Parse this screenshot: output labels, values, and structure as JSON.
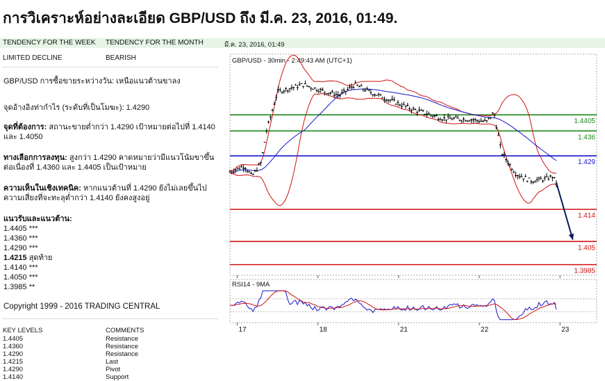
{
  "title": "การวิเคราะห์อย่างละเอียด GBP/USD ถึง มี.ค. 23, 2016, 01:49.",
  "header": {
    "tendency_week_label": "TENDENCY FOR THE WEEK",
    "tendency_month_label": "TENDENCY FOR THE MONTH",
    "date": "มี.ค. 23, 2016, 01:49",
    "tendency_week_value": "LIMITED DECLINE",
    "tendency_month_value": "BEARISH"
  },
  "analysis": {
    "pair_line": "GBP/USD การซื้อขายระหว่างวัน: เหนือแนวต้านขาลง",
    "pivot_line": "จุดอ้างอิงท่ากำไร (ระดับที่เป็นโมฆะ): 1.4290",
    "target_label": "จุดที่ต้องการ:",
    "target_text": " สถานะขายต่ำกว่า 1.4290 เป้าหมายต่อไปที่ 1.4140 และ 1.4050",
    "alt_label": "ทางเลือกการลงทุน:",
    "alt_text": " สูงกว่า 1.4290 คาดหมายว่ามีแนวโน้มขาขึ้นต่อเนื่องที่ 1.4360 และ 1.4405 เป็นเป้าหมาย",
    "tech_label": "ความเห็นในเชิงเทคนิค:",
    "tech_text": " หากแนวต้านที่ 1.4290 ยังไม่เลยขึ้นไป ความเสี่ยงที่จะทะลุต่ำกว่า 1.4140 ยังคงสูงอยู่",
    "sr_title": "แนวรับและแนวต้าน:",
    "levels": [
      {
        "value": "1.4405",
        "suffix": " ***",
        "bold": false
      },
      {
        "value": "1.4360",
        "suffix": " ***",
        "bold": false
      },
      {
        "value": "1.4290",
        "suffix": " ***",
        "bold": false
      },
      {
        "value": "1.4215",
        "suffix": " สุดท้าย",
        "bold": true
      },
      {
        "value": "1.4140",
        "suffix": " ***",
        "bold": false
      },
      {
        "value": "1.4050",
        "suffix": " ***",
        "bold": false
      },
      {
        "value": "1.3985",
        "suffix": " **",
        "bold": false
      }
    ],
    "copyright": "Copyright 1999 - 2016 TRADING CENTRAL"
  },
  "key_levels": {
    "header_levels": "KEY LEVELS",
    "header_comments": "COMMENTS",
    "rows": [
      {
        "level": "1.4405",
        "comment": "Resistance"
      },
      {
        "level": "1.4360",
        "comment": "Resistance"
      },
      {
        "level": "1.4290",
        "comment": "Resistance"
      },
      {
        "level": "1.4215",
        "comment": "Last"
      },
      {
        "level": "1.4290",
        "comment": "Pivot"
      },
      {
        "level": "1.4140",
        "comment": "Support"
      }
    ]
  },
  "chart_data": {
    "type": "candlestick",
    "title": "GBP/USD - 30min - 2:49:43 AM (UTC+1)",
    "x_ticks": [
      "17",
      "18",
      "21",
      "22",
      "23"
    ],
    "ylim": [
      1.3955,
      1.4575
    ],
    "horizontal_levels": [
      {
        "value": 1.4405,
        "label": "1.4405",
        "color": "#1a8a1a"
      },
      {
        "value": 1.436,
        "label": "1.436",
        "color": "#1a8a1a"
      },
      {
        "value": 1.429,
        "label": "1.429",
        "color": "#1414cc"
      },
      {
        "value": 1.414,
        "label": "1.414",
        "color": "#d01010"
      },
      {
        "value": 1.405,
        "label": "1.405",
        "color": "#d01010"
      },
      {
        "value": 1.3985,
        "label": "1.3985",
        "color": "#d01010"
      }
    ],
    "price_path": [
      {
        "t": 0,
        "v": 1.4245
      },
      {
        "t": 0.04,
        "v": 1.4262
      },
      {
        "t": 0.06,
        "v": 1.4232
      },
      {
        "t": 0.085,
        "v": 1.427
      },
      {
        "t": 0.1,
        "v": 1.436
      },
      {
        "t": 0.13,
        "v": 1.447
      },
      {
        "t": 0.2,
        "v": 1.449
      },
      {
        "t": 0.26,
        "v": 1.447
      },
      {
        "t": 0.3,
        "v": 1.446
      },
      {
        "t": 0.34,
        "v": 1.449
      },
      {
        "t": 0.38,
        "v": 1.447
      },
      {
        "t": 0.44,
        "v": 1.4445
      },
      {
        "t": 0.5,
        "v": 1.442
      },
      {
        "t": 0.58,
        "v": 1.4395
      },
      {
        "t": 0.66,
        "v": 1.4392
      },
      {
        "t": 0.7,
        "v": 1.4385
      },
      {
        "t": 0.72,
        "v": 1.4412
      },
      {
        "t": 0.74,
        "v": 1.43
      },
      {
        "t": 0.78,
        "v": 1.424
      },
      {
        "t": 0.82,
        "v": 1.422
      },
      {
        "t": 0.86,
        "v": 1.4225
      },
      {
        "t": 0.88,
        "v": 1.4232
      },
      {
        "t": 0.89,
        "v": 1.4215
      }
    ],
    "forecast_arrow": [
      {
        "t": 0.89,
        "v": 1.4215
      },
      {
        "t": 0.935,
        "v": 1.4055
      }
    ],
    "rsi_title": "RSI14 - 9MA",
    "colors": {
      "bollinger": "#d01010",
      "moving_average": "#1414cc",
      "candles": "#000000",
      "rsi_ma": "#d01010",
      "rsi": "#1414cc"
    }
  }
}
